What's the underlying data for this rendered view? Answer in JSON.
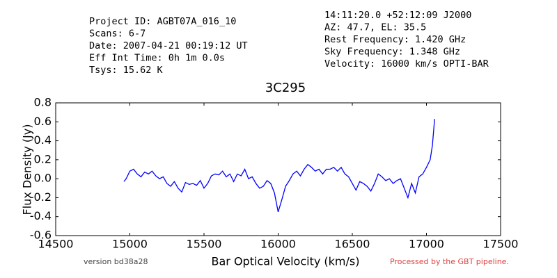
{
  "chart_data": {
    "type": "line",
    "info_left": [
      "Project ID: AGBT07A_016_10",
      "Scans: 6-7",
      "Date: 2007-04-21 00:19:12 UT",
      "Eff Int Time: 0h 1m 0.0s",
      "Tsys: 15.62 K"
    ],
    "info_right": [
      "14:11:20.0 +52:12:09 J2000",
      "AZ: 47.7, EL: 35.5",
      "Rest Frequency:   1.420 GHz",
      "Sky Frequency:    1.348 GHz",
      "Velocity: 16000 km/s OPTI-BAR"
    ],
    "title": "3C295",
    "x_label": "Bar Optical Velocity (km/s)",
    "y_label": "Flux Density (Jy)",
    "footer_left": "version bd38a28",
    "footer_right": "Processed by the GBT pipeline.",
    "xlim": [
      14500,
      17500
    ],
    "xticks": [
      14500,
      15000,
      15500,
      16000,
      16500,
      17000,
      17500
    ],
    "ylim": [
      -0.6,
      0.8
    ],
    "yticks": [
      -0.6,
      -0.4,
      -0.2,
      {
        "value": 0,
        "label": "0.0"
      },
      0.2,
      0.4,
      0.6,
      0.8
    ],
    "series": [
      {
        "color": "#0000ff",
        "x": [
          14960,
          14975,
          15000,
          15025,
          15050,
          15075,
          15100,
          15125,
          15150,
          15175,
          15200,
          15225,
          15250,
          15275,
          15300,
          15325,
          15350,
          15375,
          15400,
          15425,
          15450,
          15475,
          15500,
          15525,
          15550,
          15575,
          15600,
          15625,
          15650,
          15675,
          15700,
          15725,
          15750,
          15775,
          15800,
          15825,
          15850,
          15875,
          15900,
          15925,
          15950,
          15975,
          16000,
          16025,
          16050,
          16075,
          16100,
          16125,
          16150,
          16175,
          16200,
          16225,
          16250,
          16275,
          16300,
          16325,
          16350,
          16375,
          16400,
          16425,
          16450,
          16475,
          16500,
          16525,
          16550,
          16575,
          16600,
          16625,
          16650,
          16675,
          16700,
          16725,
          16750,
          16775,
          16800,
          16825,
          16850,
          16875,
          16900,
          16925,
          16950,
          16975,
          17000,
          17025,
          17040,
          17055
        ],
        "values": [
          -0.03,
          0.0,
          0.08,
          0.1,
          0.05,
          0.02,
          0.07,
          0.05,
          0.08,
          0.03,
          0.0,
          0.02,
          -0.05,
          -0.08,
          -0.03,
          -0.1,
          -0.14,
          -0.04,
          -0.06,
          -0.05,
          -0.07,
          -0.02,
          -0.1,
          -0.05,
          0.03,
          0.05,
          0.04,
          0.08,
          0.02,
          0.05,
          -0.03,
          0.05,
          0.03,
          0.1,
          0.0,
          0.02,
          -0.05,
          -0.1,
          -0.08,
          -0.02,
          -0.05,
          -0.15,
          -0.35,
          -0.22,
          -0.08,
          -0.02,
          0.05,
          0.08,
          0.03,
          0.1,
          0.15,
          0.12,
          0.08,
          0.1,
          0.05,
          0.1,
          0.1,
          0.12,
          0.08,
          0.12,
          0.05,
          0.02,
          -0.05,
          -0.12,
          -0.03,
          -0.05,
          -0.08,
          -0.13,
          -0.05,
          0.05,
          0.02,
          -0.02,
          0.0,
          -0.05,
          -0.02,
          0.0,
          -0.1,
          -0.2,
          -0.05,
          -0.15,
          0.02,
          0.05,
          0.12,
          0.2,
          0.35,
          0.63
        ]
      }
    ]
  }
}
